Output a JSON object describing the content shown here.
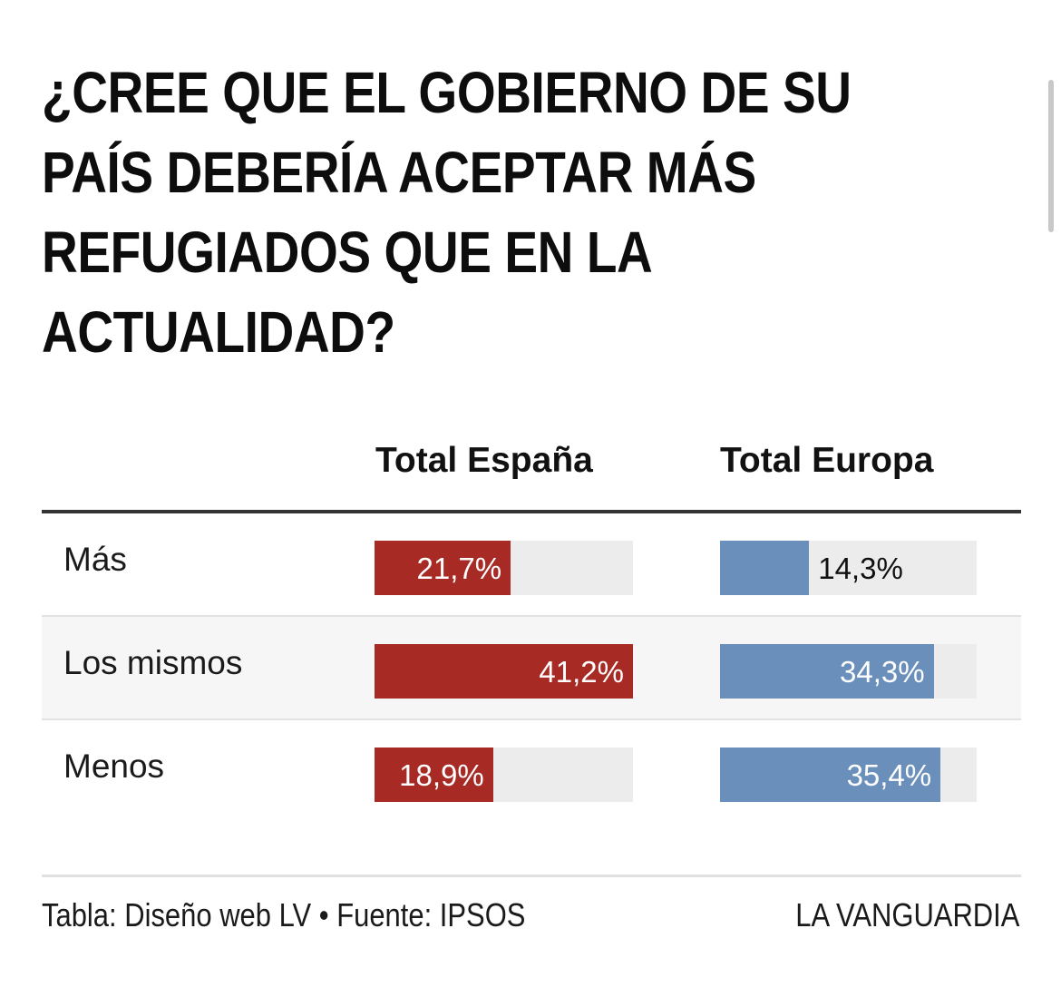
{
  "title": "¿CREE QUE EL GOBIERNO DE SU PAÍS DEBERÍA ACEPTAR MÁS REFUGIADOS QUE EN LA ACTUALIDAD?",
  "colors": {
    "espana_bar": "#a72a25",
    "europa_bar": "#6a8fba",
    "track": "#ececec"
  },
  "chart_data": {
    "type": "bar",
    "title": "¿CREE QUE EL GOBIERNO DE SU PAÍS DEBERÍA ACEPTAR MÁS REFUGIADOS QUE EN LA ACTUALIDAD?",
    "categories": [
      "Más",
      "Los mismos",
      "Menos"
    ],
    "series": [
      {
        "name": "Total España",
        "values": [
          21.7,
          41.2,
          18.9
        ],
        "labels": [
          "21,7%",
          "41,2%",
          "18,9%"
        ]
      },
      {
        "name": "Total Europa",
        "values": [
          14.3,
          34.3,
          35.4
        ],
        "labels": [
          "14,3%",
          "34,3%",
          "35,4%"
        ]
      }
    ],
    "unit": "%",
    "ylim": [
      0,
      41.2
    ]
  },
  "footer": {
    "source": "Tabla: Diseño web LV • Fuente: IPSOS",
    "brand": "LA VANGUARDIA"
  }
}
